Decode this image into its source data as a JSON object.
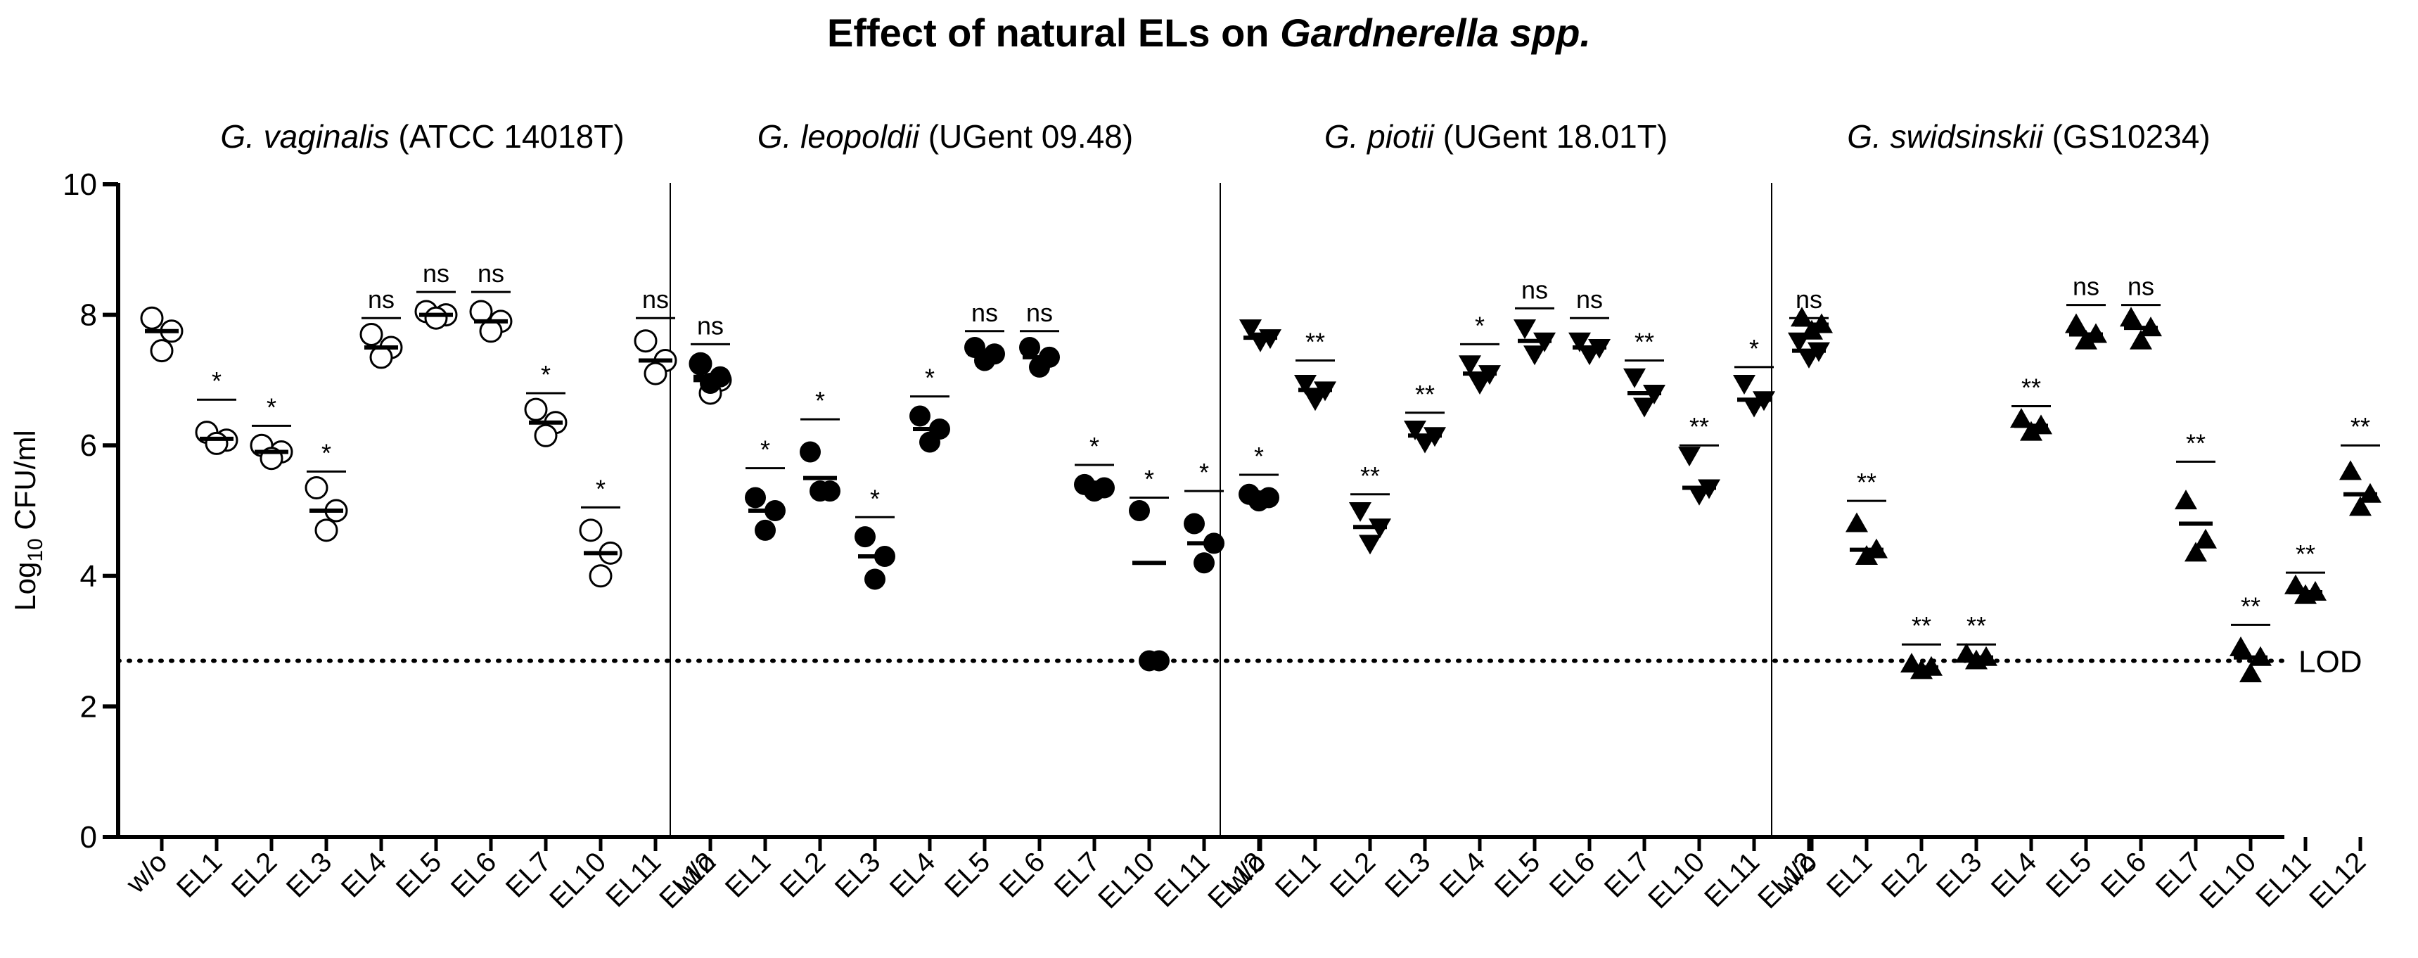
{
  "chart_data": {
    "type": "scatter",
    "title": "Effect of natural ELs on ",
    "title_italic": "Gardnerella spp.",
    "ylabel": "Log",
    "ylabel_sub": "10",
    "ylabel_unit": " CFU/ml",
    "ylim": [
      0,
      10
    ],
    "yticks": [
      0,
      2,
      4,
      6,
      8,
      10
    ],
    "lod": {
      "label": "LOD",
      "value": 2.7
    },
    "categories": [
      "w/o",
      "EL1",
      "EL2",
      "EL3",
      "EL4",
      "EL5",
      "EL6",
      "EL7",
      "EL10",
      "EL11",
      "EL12"
    ],
    "panels": [
      {
        "species": "G. vaginalis",
        "strain": " (ATCC 14018T)",
        "marker": "open-circle",
        "means": [
          7.75,
          6.1,
          5.9,
          5.0,
          7.5,
          8.0,
          7.9,
          6.35,
          4.35,
          7.3,
          7.0
        ],
        "points": [
          [
            7.95,
            7.75,
            7.45
          ],
          [
            6.2,
            6.08,
            6.03
          ],
          [
            6.0,
            5.9,
            5.8
          ],
          [
            5.35,
            5.0,
            4.7
          ],
          [
            7.7,
            7.5,
            7.35
          ],
          [
            8.05,
            8.0,
            7.95
          ],
          [
            8.05,
            7.9,
            7.75
          ],
          [
            6.55,
            6.35,
            6.15
          ],
          [
            4.7,
            4.35,
            4.0
          ],
          [
            7.6,
            7.3,
            7.1
          ],
          [
            7.25,
            7.0,
            6.8
          ]
        ],
        "sig_lines": [
          null,
          6.7,
          6.3,
          5.6,
          7.95,
          8.35,
          8.35,
          6.8,
          5.05,
          7.95,
          7.55
        ],
        "sig": [
          "",
          "*",
          "*",
          "*",
          "ns",
          "ns",
          "ns",
          "*",
          "*",
          "ns",
          "ns"
        ]
      },
      {
        "species": "G. leopoldii",
        "strain": " (UGent 09.48)",
        "marker": "filled-circle",
        "means": [
          7.05,
          5.0,
          5.5,
          4.3,
          6.25,
          7.4,
          7.35,
          5.35,
          4.2,
          4.5,
          5.2
        ],
        "points": [
          [
            7.25,
            7.05,
            6.95
          ],
          [
            5.2,
            5.0,
            4.7
          ],
          [
            5.9,
            5.3,
            5.3
          ],
          [
            4.6,
            4.3,
            3.95
          ],
          [
            6.45,
            6.25,
            6.05
          ],
          [
            7.5,
            7.4,
            7.3
          ],
          [
            7.5,
            7.35,
            7.2
          ],
          [
            5.4,
            5.35,
            5.3
          ],
          [
            5.0,
            2.7,
            2.7
          ],
          [
            4.8,
            4.5,
            4.2
          ],
          [
            5.25,
            5.2,
            5.15
          ]
        ],
        "sig_lines": [
          null,
          5.65,
          6.4,
          4.9,
          6.75,
          7.75,
          7.75,
          5.7,
          5.2,
          5.3,
          5.55
        ],
        "sig": [
          "",
          "*",
          "*",
          "*",
          "*",
          "ns",
          "ns",
          "*",
          "*",
          "*",
          "*"
        ]
      },
      {
        "species": "G. piotii",
        "strain": " (UGent 18.01T)",
        "marker": "down-triangle",
        "means": [
          7.65,
          6.85,
          4.75,
          6.15,
          7.1,
          7.6,
          7.5,
          6.8,
          5.35,
          6.7,
          7.45
        ],
        "points": [
          [
            7.8,
            7.65,
            7.6
          ],
          [
            6.95,
            6.85,
            6.7
          ],
          [
            5.0,
            4.75,
            4.5
          ],
          [
            6.25,
            6.15,
            6.05
          ],
          [
            7.25,
            7.1,
            6.95
          ],
          [
            7.8,
            7.6,
            7.4
          ],
          [
            7.6,
            7.5,
            7.4
          ],
          [
            7.05,
            6.8,
            6.6
          ],
          [
            5.85,
            5.35,
            5.25
          ],
          [
            6.95,
            6.7,
            6.6
          ],
          [
            7.6,
            7.45,
            7.35
          ]
        ],
        "sig_lines": [
          null,
          7.3,
          5.25,
          6.5,
          7.55,
          8.1,
          7.95,
          7.3,
          6.0,
          7.2,
          7.95
        ],
        "sig": [
          "",
          "**",
          "**",
          "**",
          "*",
          "ns",
          "ns",
          "**",
          "**",
          "*",
          "ns"
        ]
      },
      {
        "species": "G. swidsinskii",
        "strain": " (GS10234)",
        "marker": "up-triangle",
        "means": [
          7.85,
          4.4,
          2.6,
          2.75,
          6.3,
          7.7,
          7.8,
          4.8,
          2.75,
          3.75,
          5.25
        ],
        "points": [
          [
            7.95,
            7.85,
            7.75
          ],
          [
            4.8,
            4.4,
            4.3
          ],
          [
            2.65,
            2.6,
            2.55
          ],
          [
            2.8,
            2.75,
            2.7
          ],
          [
            6.4,
            6.3,
            6.2
          ],
          [
            7.85,
            7.7,
            7.6
          ],
          [
            7.95,
            7.8,
            7.6
          ],
          [
            5.15,
            4.55,
            4.35
          ],
          [
            2.9,
            2.75,
            2.5
          ],
          [
            3.85,
            3.75,
            3.7
          ],
          [
            5.6,
            5.25,
            5.05
          ]
        ],
        "sig_lines": [
          null,
          5.15,
          2.95,
          2.95,
          6.6,
          8.15,
          8.15,
          5.75,
          3.25,
          4.05,
          6.0
        ],
        "sig": [
          "",
          "**",
          "**",
          "**",
          "**",
          "ns",
          "ns",
          "**",
          "**",
          "**",
          "**"
        ]
      }
    ]
  }
}
